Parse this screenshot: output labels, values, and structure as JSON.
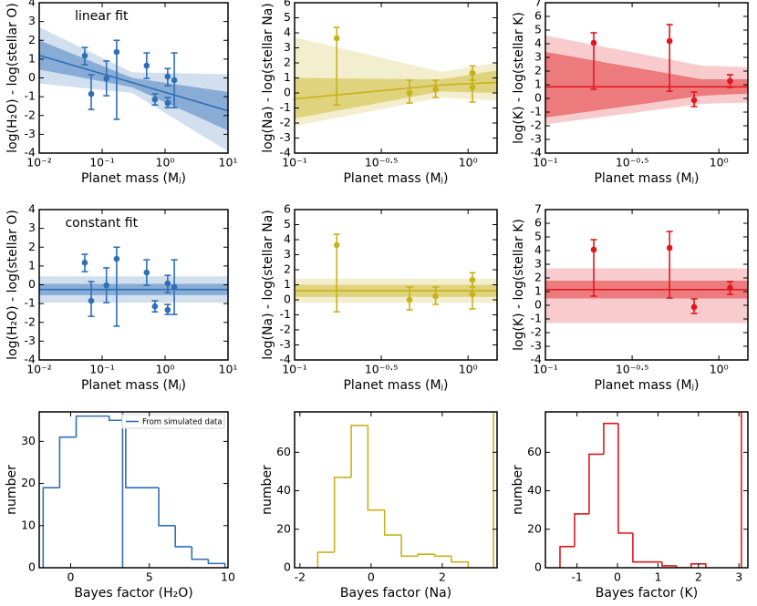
{
  "chart_data": [
    {
      "type": "scatter",
      "annotation": "linear fit",
      "xlabel": "Planet mass (Mⱼ)",
      "ylabel": "log(H₂O) - log(stellar O)",
      "xscale": "log",
      "color": "#2f6fb5",
      "xlim": [
        0.01,
        10
      ],
      "xticks": [
        {
          "value": 0.01,
          "label": "10⁻²"
        },
        {
          "value": 0.1,
          "label": "10⁻¹"
        },
        {
          "value": 1,
          "label": "10⁰"
        },
        {
          "value": 10,
          "label": "10¹"
        }
      ],
      "ylim": [
        -4,
        4
      ],
      "yticks": [
        -4,
        -3,
        -2,
        -1,
        0,
        1,
        2,
        3,
        4
      ],
      "x": [
        0.053,
        0.067,
        0.117,
        0.17,
        0.51,
        0.69,
        1.1,
        1.1,
        1.4
      ],
      "y": [
        1.18,
        -0.85,
        -0.03,
        1.38,
        0.65,
        -1.15,
        0.07,
        -1.34,
        -0.12
      ],
      "y_lower": [
        0.7,
        -1.68,
        -0.95,
        -2.2,
        -0.03,
        -1.44,
        -0.42,
        -1.58,
        -1.58
      ],
      "y_upper": [
        1.62,
        0.17,
        0.9,
        2.0,
        1.33,
        -0.85,
        0.5,
        -1.05,
        1.33
      ],
      "fit": {
        "x": [
          0.01,
          0.3,
          10
        ],
        "y": [
          1.2,
          -0.25,
          -1.75
        ],
        "inner_lower": [
          0.45,
          -0.5,
          -2.8
        ],
        "inner_upper": [
          2.0,
          0.0,
          -0.75
        ],
        "outer_lower": [
          -0.3,
          -0.8,
          -3.9
        ],
        "outer_upper": [
          2.7,
          0.3,
          0.2
        ]
      }
    },
    {
      "type": "scatter",
      "xlabel": "Planet mass (Mⱼ)",
      "ylabel": "log(Na) - log(stellar Na)",
      "xscale": "log",
      "color": "#c8b21c",
      "xlim": [
        0.1,
        1.47
      ],
      "xticks": [
        {
          "value": 0.1,
          "label": "10⁻¹"
        },
        {
          "value": 0.3162,
          "label": "10⁻⁰·⁵"
        },
        {
          "value": 1,
          "label": "10⁰"
        }
      ],
      "ylim": [
        -4,
        6
      ],
      "yticks": [
        -4,
        -3,
        -2,
        -1,
        0,
        1,
        2,
        3,
        4,
        5,
        6
      ],
      "x": [
        0.175,
        0.46,
        0.65,
        1.06,
        1.06
      ],
      "y": [
        3.64,
        0.0,
        0.24,
        1.33,
        0.36
      ],
      "y_lower": [
        -0.8,
        -0.67,
        -0.3,
        0.85,
        -0.6
      ],
      "y_upper": [
        4.36,
        0.85,
        0.85,
        1.8,
        1.3
      ],
      "fit": {
        "x": [
          0.1,
          0.7,
          1.47
        ],
        "y": [
          -0.4,
          0.53,
          0.7
        ],
        "inner_lower": [
          -1.7,
          0.1,
          0.0
        ],
        "inner_upper": [
          1.0,
          0.9,
          1.5
        ],
        "outer_lower": [
          -2.2,
          -0.3,
          -0.5
        ],
        "outer_upper": [
          3.7,
          1.4,
          2.0
        ]
      }
    },
    {
      "type": "scatter",
      "xlabel": "Planet mass (Mⱼ)",
      "ylabel": "log(K) - log(stellar K)",
      "xscale": "log",
      "color": "#e0171d",
      "xlim": [
        0.1,
        1.47
      ],
      "xticks": [
        {
          "value": 0.1,
          "label": "10⁻¹"
        },
        {
          "value": 0.3162,
          "label": "10⁻⁰·⁵"
        },
        {
          "value": 1,
          "label": "10⁰"
        }
      ],
      "ylim": [
        -4,
        7
      ],
      "yticks": [
        -4,
        -3,
        -2,
        -1,
        0,
        1,
        2,
        3,
        4,
        5,
        6,
        7
      ],
      "x": [
        0.19,
        0.52,
        0.72,
        1.16
      ],
      "y": [
        4.07,
        4.2,
        -0.13,
        1.27
      ],
      "y_lower": [
        0.67,
        0.53,
        -0.6,
        0.8
      ],
      "y_upper": [
        4.8,
        5.4,
        0.47,
        1.73
      ],
      "fit": {
        "x": [
          0.1,
          0.8,
          1.47
        ],
        "y": [
          0.85,
          0.85,
          0.85
        ],
        "inner_lower": [
          -1.4,
          0.2,
          0.35
        ],
        "inner_upper": [
          3.4,
          1.4,
          1.4
        ],
        "outer_lower": [
          -1.9,
          -0.4,
          -0.3
        ],
        "outer_upper": [
          4.6,
          2.4,
          2.3
        ]
      }
    },
    {
      "type": "scatter",
      "annotation": "constant fit",
      "xlabel": "Planet mass (Mⱼ)",
      "ylabel": "log(H₂O) - log(stellar O)",
      "xscale": "log",
      "color": "#2f6fb5",
      "xlim": [
        0.01,
        10
      ],
      "xticks": [
        {
          "value": 0.01,
          "label": "10⁻²"
        },
        {
          "value": 0.1,
          "label": "10⁻¹"
        },
        {
          "value": 1,
          "label": "10⁰"
        },
        {
          "value": 10,
          "label": "10¹"
        }
      ],
      "ylim": [
        -4,
        4
      ],
      "yticks": [
        -4,
        -3,
        -2,
        -1,
        0,
        1,
        2,
        3,
        4
      ],
      "x": [
        0.053,
        0.067,
        0.117,
        0.17,
        0.51,
        0.69,
        1.1,
        1.1,
        1.4
      ],
      "y": [
        1.18,
        -0.85,
        -0.03,
        1.38,
        0.65,
        -1.15,
        0.07,
        -1.34,
        -0.12
      ],
      "y_lower": [
        0.7,
        -1.68,
        -0.95,
        -2.2,
        -0.03,
        -1.44,
        -0.42,
        -1.58,
        -1.58
      ],
      "y_upper": [
        1.62,
        0.17,
        0.9,
        2.0,
        1.33,
        -0.85,
        0.5,
        -1.05,
        1.33
      ],
      "fit": {
        "x": [
          0.01,
          10
        ],
        "y": [
          -0.25,
          -0.25
        ],
        "inner_lower": [
          -0.55,
          -0.55
        ],
        "inner_upper": [
          0.05,
          0.05
        ],
        "outer_lower": [
          -0.95,
          -0.95
        ],
        "outer_upper": [
          0.45,
          0.45
        ]
      }
    },
    {
      "type": "scatter",
      "xlabel": "Planet mass (Mⱼ)",
      "ylabel": "log(Na) - log(stellar Na)",
      "xscale": "log",
      "color": "#c8b21c",
      "xlim": [
        0.1,
        1.47
      ],
      "xticks": [
        {
          "value": 0.1,
          "label": "10⁻¹"
        },
        {
          "value": 0.3162,
          "label": "10⁻⁰·⁵"
        },
        {
          "value": 1,
          "label": "10⁰"
        }
      ],
      "ylim": [
        -4,
        6
      ],
      "yticks": [
        -4,
        -3,
        -2,
        -1,
        0,
        1,
        2,
        3,
        4,
        5,
        6
      ],
      "x": [
        0.175,
        0.46,
        0.65,
        1.06,
        1.06
      ],
      "y": [
        3.64,
        0.0,
        0.24,
        1.33,
        0.36
      ],
      "y_lower": [
        -0.8,
        -0.67,
        -0.3,
        0.85,
        -0.6
      ],
      "y_upper": [
        4.36,
        0.85,
        0.85,
        1.8,
        1.3
      ],
      "fit": {
        "x": [
          0.1,
          1.47
        ],
        "y": [
          0.6,
          0.6
        ],
        "inner_lower": [
          0.2,
          0.2
        ],
        "inner_upper": [
          1.0,
          1.0
        ],
        "outer_lower": [
          -0.2,
          -0.2
        ],
        "outer_upper": [
          1.4,
          1.4
        ]
      }
    },
    {
      "type": "scatter",
      "xlabel": "Planet mass (Mⱼ)",
      "ylabel": "log(K) - log(stellar K)",
      "xscale": "log",
      "color": "#e0171d",
      "xlim": [
        0.1,
        1.47
      ],
      "xticks": [
        {
          "value": 0.1,
          "label": "10⁻¹"
        },
        {
          "value": 0.3162,
          "label": "10⁻⁰·⁵"
        },
        {
          "value": 1,
          "label": "10⁰"
        }
      ],
      "ylim": [
        -4,
        7
      ],
      "yticks": [
        -4,
        -3,
        -2,
        -1,
        0,
        1,
        2,
        3,
        4,
        5,
        6,
        7
      ],
      "x": [
        0.19,
        0.52,
        0.72,
        1.16
      ],
      "y": [
        4.07,
        4.2,
        -0.13,
        1.27
      ],
      "y_lower": [
        0.67,
        0.53,
        -0.6,
        0.8
      ],
      "y_upper": [
        4.8,
        5.4,
        0.47,
        1.73
      ],
      "fit": {
        "x": [
          0.1,
          1.47
        ],
        "y": [
          1.15,
          1.15
        ],
        "inner_lower": [
          0.5,
          0.5
        ],
        "inner_upper": [
          1.8,
          1.8
        ],
        "outer_lower": [
          -1.3,
          -1.3
        ],
        "outer_upper": [
          2.7,
          2.7
        ]
      }
    },
    {
      "type": "histogram",
      "xlabel": "Bayes factor (H₂O)",
      "ylabel": "number",
      "color": "#2f6fb5",
      "name": "From simulated data",
      "legend": "upper right",
      "xlim": [
        -2,
        10
      ],
      "xticks": [
        0,
        5,
        10
      ],
      "ylim": [
        0,
        37
      ],
      "yticks": [
        0,
        10,
        20,
        30
      ],
      "bins": [
        -1.75,
        -0.7,
        0.35,
        1.4,
        2.45,
        3.5,
        4.55,
        5.6,
        6.65,
        7.7,
        8.75,
        9.8
      ],
      "counts": [
        19,
        31,
        36,
        36,
        35,
        19,
        19,
        10,
        5,
        2,
        1
      ],
      "vline": 3.3
    },
    {
      "type": "histogram",
      "xlabel": "Bayes factor (Na)",
      "ylabel": "number",
      "color": "#c8b21c",
      "xlim": [
        -2.15,
        3.54
      ],
      "xticks": [
        -2,
        0,
        2
      ],
      "ylim": [
        0,
        81
      ],
      "yticks": [
        0,
        20,
        40,
        60
      ],
      "bins": [
        -1.5,
        -1.03,
        -0.56,
        -0.09,
        0.38,
        0.85,
        1.32,
        1.79,
        2.26,
        2.73
      ],
      "counts": [
        8,
        47,
        74,
        30,
        17,
        6,
        7,
        6,
        3
      ],
      "vline": 3.44
    },
    {
      "type": "histogram",
      "xlabel": "Bayes factor (K)",
      "ylabel": "number",
      "color": "#e0171d",
      "xlim": [
        -1.78,
        3.22
      ],
      "xticks": [
        -1,
        0,
        1,
        2,
        3
      ],
      "ylim": [
        0,
        81
      ],
      "yticks": [
        0,
        20,
        40,
        60
      ],
      "bins": [
        -1.42,
        -1.06,
        -0.7,
        -0.34,
        0.02,
        0.38,
        0.74,
        1.1,
        1.46,
        1.82,
        2.18
      ],
      "counts": [
        11,
        28,
        59,
        75,
        18,
        3,
        3,
        1,
        0,
        2
      ],
      "vline": 3.06
    }
  ]
}
